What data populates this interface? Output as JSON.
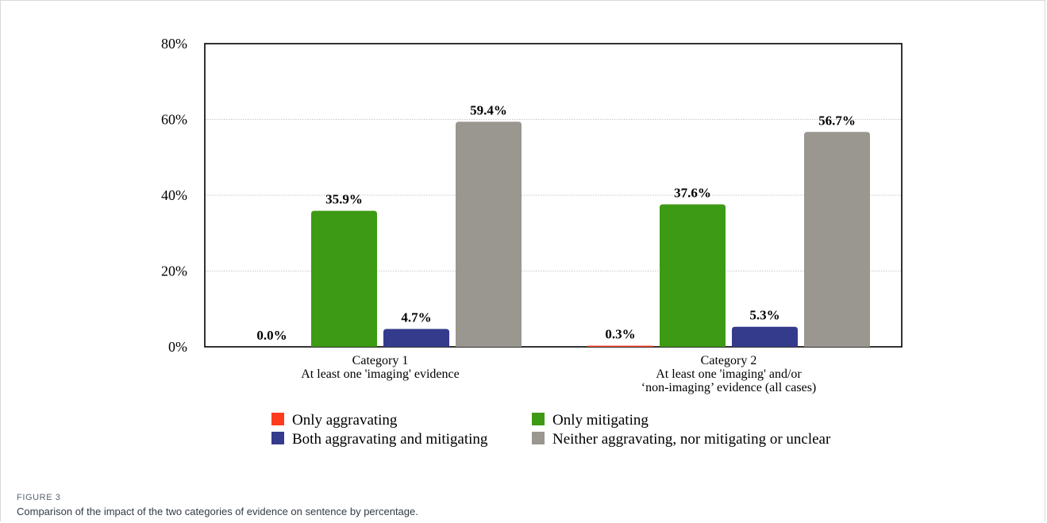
{
  "figure": {
    "label": "FIGURE 3",
    "caption": "Comparison of the impact of the two categories of evidence on sentence by percentage."
  },
  "chart_data": {
    "type": "bar",
    "title": "",
    "xlabel": "",
    "ylabel": "",
    "ylim": [
      0,
      80
    ],
    "yticks": [
      "0%",
      "20%",
      "40%",
      "60%",
      "80%"
    ],
    "grid": true,
    "legend_position": "bottom",
    "categories": [
      [
        "Category 1",
        "At least one 'imaging' evidence"
      ],
      [
        "Category 2",
        "At least one 'imaging' and/or",
        "‘non-imaging’ evidence (all cases)"
      ]
    ],
    "series": [
      {
        "name": "Only aggravating",
        "color": "#ff3b1f",
        "values": [
          0.0,
          0.3
        ],
        "labels": [
          "0.0%",
          "0.3%"
        ]
      },
      {
        "name": "Only mitigating",
        "color": "#3d9a14",
        "values": [
          35.9,
          37.6
        ],
        "labels": [
          "35.9%",
          "37.6%"
        ]
      },
      {
        "name": "Both aggravating and mitigating",
        "color": "#353b8c",
        "values": [
          4.7,
          5.3
        ],
        "labels": [
          "4.7%",
          "5.3%"
        ]
      },
      {
        "name": "Neither aggravating, nor mitigating or unclear",
        "color": "#9a9690",
        "values": [
          59.4,
          56.7
        ],
        "labels": [
          "59.4%",
          "56.7%"
        ]
      }
    ],
    "legend_order": [
      0,
      1,
      2,
      3
    ]
  }
}
